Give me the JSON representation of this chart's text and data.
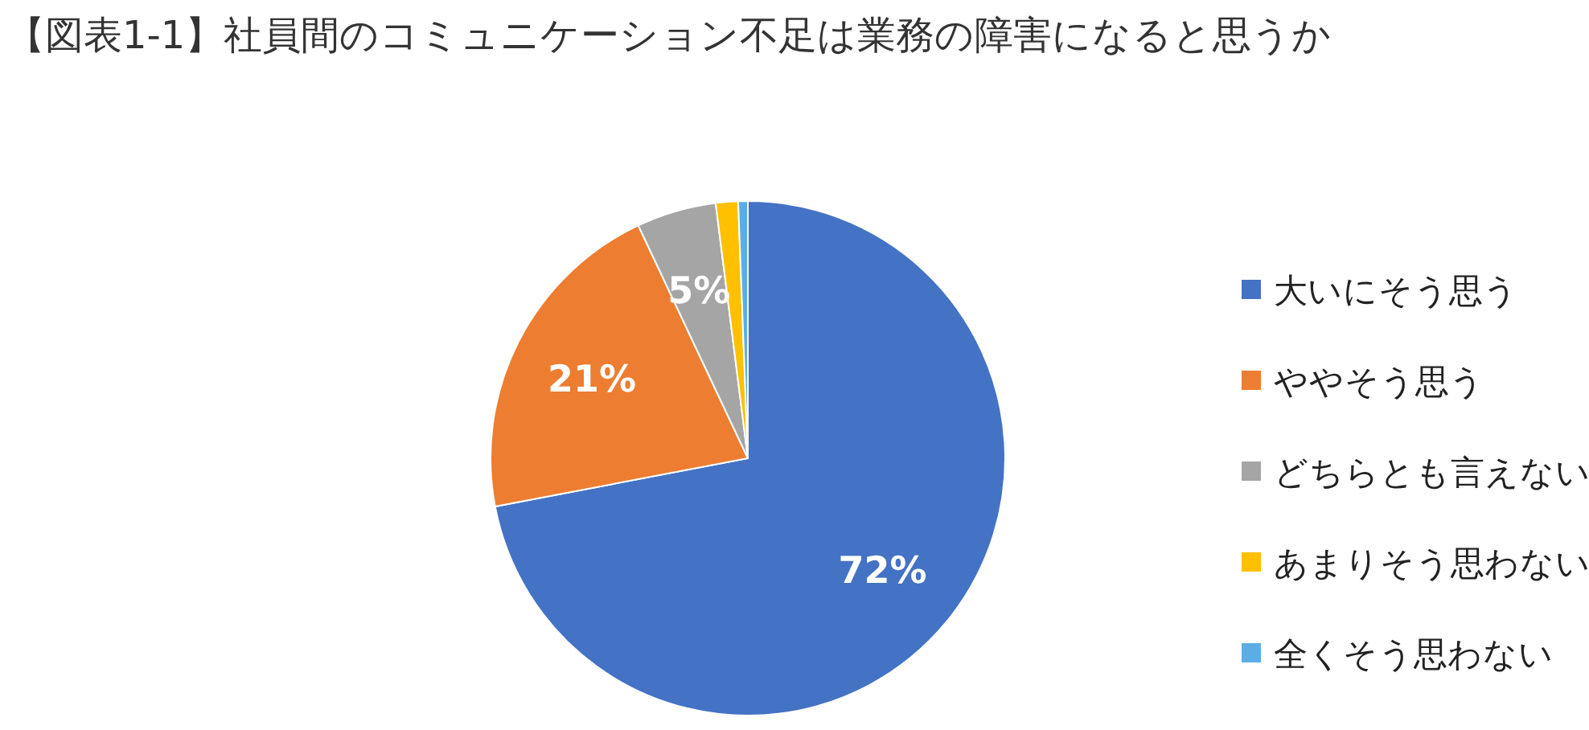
{
  "chart_data": {
    "type": "pie",
    "title": "【図表1-1】社員間のコミュニケーション不足は業務の障害になると思うか",
    "categories": [
      "大いにそう思う",
      "ややそう思う",
      "どちらとも言えない",
      "あまりそう思わない",
      "全くそう思わない"
    ],
    "values": [
      72,
      21,
      5,
      1.4,
      0.6
    ],
    "colors": [
      "#4472c4",
      "#ed7d31",
      "#a5a5a5",
      "#ffc000",
      "#5baee5"
    ],
    "value_labels": [
      "72%",
      "21%",
      "5%",
      null,
      null
    ],
    "legend": "right"
  }
}
